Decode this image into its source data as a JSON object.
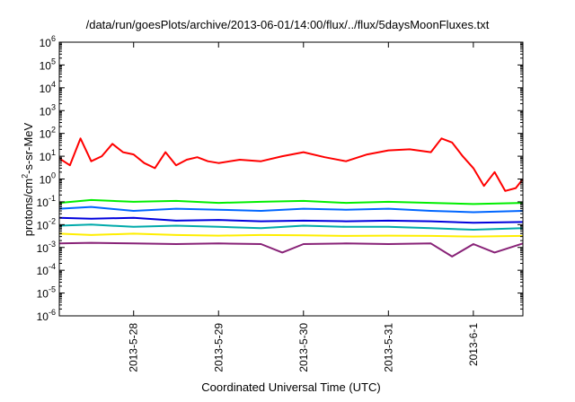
{
  "chart_data": {
    "type": "line",
    "title": "/data/run/goesPlots/archive/2013-06-01/14:00/flux/../flux/5daysMoonFluxes.txt",
    "xlabel": "Coordinated Universal Time (UTC)",
    "ylabel": "protons/cm2-s-sr-MeV",
    "yscale": "log",
    "ylim": [
      1e-06,
      1000000.0
    ],
    "xlim": [
      "2013-05-27 03:00",
      "2013-06-01 14:00"
    ],
    "x_ticks": [
      "2013-5-28",
      "2013-5-29",
      "2013-5-30",
      "2013-5-31",
      "2013-6-1"
    ],
    "y_ticks": [
      "10-6",
      "10-5",
      "10-4",
      "10-3",
      "10-2",
      "10-1",
      "100",
      "101",
      "102",
      "103",
      "104",
      "105",
      "106"
    ],
    "grid": false,
    "legend": "none",
    "series": [
      {
        "color": "#ff0000",
        "x": [
          "2013-05-27 03:00",
          "2013-05-27 06:00",
          "2013-05-27 09:00",
          "2013-05-27 12:00",
          "2013-05-27 15:00",
          "2013-05-27 18:00",
          "2013-05-27 21:00",
          "2013-05-28 00:00",
          "2013-05-28 03:00",
          "2013-05-28 06:00",
          "2013-05-28 09:00",
          "2013-05-28 12:00",
          "2013-05-28 15:00",
          "2013-05-28 18:00",
          "2013-05-28 21:00",
          "2013-05-29 00:00",
          "2013-05-29 06:00",
          "2013-05-29 12:00",
          "2013-05-29 18:00",
          "2013-05-30 00:00",
          "2013-05-30 06:00",
          "2013-05-30 12:00",
          "2013-05-30 18:00",
          "2013-05-31 00:00",
          "2013-05-31 06:00",
          "2013-05-31 12:00",
          "2013-05-31 15:00",
          "2013-05-31 18:00",
          "2013-05-31 21:00",
          "2013-06-01 00:00",
          "2013-06-01 03:00",
          "2013-06-01 06:00",
          "2013-06-01 09:00",
          "2013-06-01 12:00",
          "2013-06-01 14:00"
        ],
        "y": [
          8,
          4,
          60,
          6,
          10,
          35,
          15,
          12,
          5,
          3,
          15,
          4,
          7,
          9,
          6,
          5,
          7,
          6,
          10,
          15,
          9,
          6,
          12,
          18,
          20,
          15,
          60,
          40,
          10,
          3,
          0.5,
          2,
          0.3,
          0.4,
          1.0
        ]
      },
      {
        "color": "#00ee00",
        "x": [
          "2013-05-27 03:00",
          "2013-05-27 12:00",
          "2013-05-28 00:00",
          "2013-05-28 12:00",
          "2013-05-29 00:00",
          "2013-05-29 12:00",
          "2013-05-30 00:00",
          "2013-05-30 12:00",
          "2013-05-31 00:00",
          "2013-05-31 12:00",
          "2013-06-01 00:00",
          "2013-06-01 14:00"
        ],
        "y": [
          0.09,
          0.12,
          0.1,
          0.11,
          0.09,
          0.1,
          0.11,
          0.09,
          0.1,
          0.09,
          0.08,
          0.09
        ]
      },
      {
        "color": "#0066ff",
        "x": [
          "2013-05-27 03:00",
          "2013-05-27 12:00",
          "2013-05-28 00:00",
          "2013-05-28 12:00",
          "2013-05-29 00:00",
          "2013-05-29 12:00",
          "2013-05-30 00:00",
          "2013-05-30 12:00",
          "2013-05-31 00:00",
          "2013-05-31 12:00",
          "2013-06-01 00:00",
          "2013-06-01 14:00"
        ],
        "y": [
          0.05,
          0.06,
          0.04,
          0.05,
          0.045,
          0.04,
          0.05,
          0.045,
          0.05,
          0.04,
          0.035,
          0.04
        ]
      },
      {
        "color": "#0000dd",
        "x": [
          "2013-05-27 03:00",
          "2013-05-27 12:00",
          "2013-05-28 00:00",
          "2013-05-28 12:00",
          "2013-05-29 00:00",
          "2013-05-29 12:00",
          "2013-05-30 00:00",
          "2013-05-30 12:00",
          "2013-05-31 00:00",
          "2013-05-31 12:00",
          "2013-06-01 00:00",
          "2013-06-01 14:00"
        ],
        "y": [
          0.02,
          0.018,
          0.02,
          0.015,
          0.016,
          0.014,
          0.015,
          0.014,
          0.015,
          0.014,
          0.012,
          0.013
        ]
      },
      {
        "color": "#00aaaa",
        "x": [
          "2013-05-27 03:00",
          "2013-05-27 12:00",
          "2013-05-28 00:00",
          "2013-05-28 12:00",
          "2013-05-29 00:00",
          "2013-05-29 12:00",
          "2013-05-30 00:00",
          "2013-05-30 12:00",
          "2013-05-31 00:00",
          "2013-05-31 12:00",
          "2013-06-01 00:00",
          "2013-06-01 14:00"
        ],
        "y": [
          0.009,
          0.01,
          0.008,
          0.009,
          0.008,
          0.007,
          0.009,
          0.008,
          0.008,
          0.007,
          0.006,
          0.007
        ]
      },
      {
        "color": "#ffee00",
        "x": [
          "2013-05-27 03:00",
          "2013-05-27 12:00",
          "2013-05-28 00:00",
          "2013-05-28 12:00",
          "2013-05-29 00:00",
          "2013-05-29 12:00",
          "2013-05-30 00:00",
          "2013-05-30 12:00",
          "2013-05-31 00:00",
          "2013-05-31 12:00",
          "2013-06-01 00:00",
          "2013-06-01 14:00"
        ],
        "y": [
          0.004,
          0.0035,
          0.004,
          0.0035,
          0.0033,
          0.0035,
          0.0034,
          0.0032,
          0.0033,
          0.0032,
          0.003,
          0.0032
        ]
      },
      {
        "color": "#882277",
        "x": [
          "2013-05-27 03:00",
          "2013-05-27 12:00",
          "2013-05-28 00:00",
          "2013-05-28 12:00",
          "2013-05-29 00:00",
          "2013-05-29 12:00",
          "2013-05-29 18:00",
          "2013-05-30 00:00",
          "2013-05-30 12:00",
          "2013-05-31 00:00",
          "2013-05-31 12:00",
          "2013-05-31 18:00",
          "2013-06-01 00:00",
          "2013-06-01 06:00",
          "2013-06-01 14:00"
        ],
        "y": [
          0.0015,
          0.0016,
          0.0015,
          0.0014,
          0.0015,
          0.0014,
          0.0006,
          0.0014,
          0.0015,
          0.0014,
          0.0015,
          0.0004,
          0.0014,
          0.0006,
          0.0015
        ]
      }
    ]
  }
}
